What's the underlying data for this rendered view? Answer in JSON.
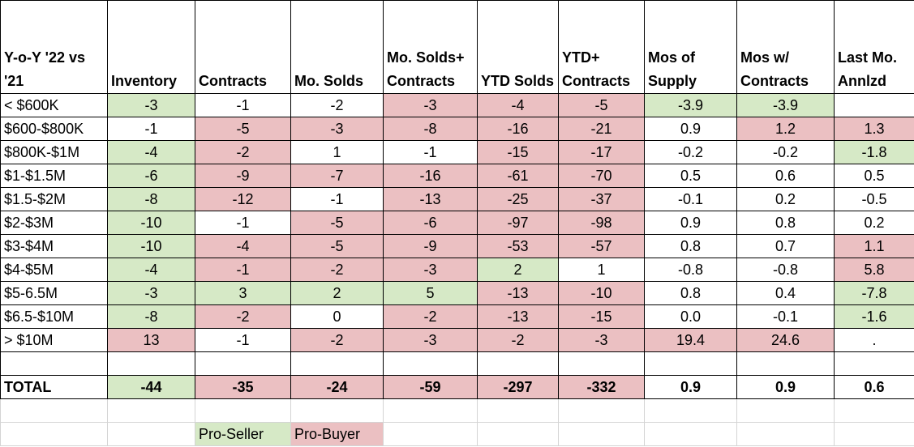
{
  "headers": [
    "Y-o-Y '22 vs '21",
    "Inventory",
    "Contracts",
    "Mo. Solds",
    "Mo. Solds+ Contracts",
    "YTD Solds",
    "YTD+ Contracts",
    "Mos of Supply",
    "Mos w/ Contracts",
    "Last Mo. Annlzd"
  ],
  "rows": [
    {
      "label": "< $600K",
      "cells": [
        [
          "-3",
          "g"
        ],
        [
          "-1",
          ""
        ],
        [
          "-2",
          ""
        ],
        [
          "-3",
          "r"
        ],
        [
          "-4",
          "r"
        ],
        [
          "-5",
          "r"
        ],
        [
          "-3.9",
          "g"
        ],
        [
          "-3.9",
          "g"
        ],
        [
          "",
          ""
        ]
      ]
    },
    {
      "label": "$600-$800K",
      "cells": [
        [
          "-1",
          ""
        ],
        [
          "-5",
          "r"
        ],
        [
          "-3",
          "r"
        ],
        [
          "-8",
          "r"
        ],
        [
          "-16",
          "r"
        ],
        [
          "-21",
          "r"
        ],
        [
          "0.9",
          ""
        ],
        [
          "1.2",
          "r"
        ],
        [
          "1.3",
          "r"
        ]
      ]
    },
    {
      "label": "$800K-$1M",
      "cells": [
        [
          "-4",
          "g"
        ],
        [
          "-2",
          "r"
        ],
        [
          "1",
          ""
        ],
        [
          "-1",
          ""
        ],
        [
          "-15",
          "r"
        ],
        [
          "-17",
          "r"
        ],
        [
          "-0.2",
          ""
        ],
        [
          "-0.2",
          ""
        ],
        [
          "-1.8",
          "g"
        ]
      ]
    },
    {
      "label": "$1-$1.5M",
      "cells": [
        [
          "-6",
          "g"
        ],
        [
          "-9",
          "r"
        ],
        [
          "-7",
          "r"
        ],
        [
          "-16",
          "r"
        ],
        [
          "-61",
          "r"
        ],
        [
          "-70",
          "r"
        ],
        [
          "0.5",
          ""
        ],
        [
          "0.6",
          ""
        ],
        [
          "0.5",
          ""
        ]
      ]
    },
    {
      "label": "$1.5-$2M",
      "cells": [
        [
          "-8",
          "g"
        ],
        [
          "-12",
          "r"
        ],
        [
          "-1",
          ""
        ],
        [
          "-13",
          "r"
        ],
        [
          "-25",
          "r"
        ],
        [
          "-37",
          "r"
        ],
        [
          "-0.1",
          ""
        ],
        [
          "0.2",
          ""
        ],
        [
          "-0.5",
          ""
        ]
      ]
    },
    {
      "label": "$2-$3M",
      "cells": [
        [
          "-10",
          "g"
        ],
        [
          "-1",
          ""
        ],
        [
          "-5",
          "r"
        ],
        [
          "-6",
          "r"
        ],
        [
          "-97",
          "r"
        ],
        [
          "-98",
          "r"
        ],
        [
          "0.9",
          ""
        ],
        [
          "0.8",
          ""
        ],
        [
          "0.2",
          ""
        ]
      ]
    },
    {
      "label": "$3-$4M",
      "cells": [
        [
          "-10",
          "g"
        ],
        [
          "-4",
          "r"
        ],
        [
          "-5",
          "r"
        ],
        [
          "-9",
          "r"
        ],
        [
          "-53",
          "r"
        ],
        [
          "-57",
          "r"
        ],
        [
          "0.8",
          ""
        ],
        [
          "0.7",
          ""
        ],
        [
          "1.1",
          "r"
        ]
      ]
    },
    {
      "label": "$4-$5M",
      "cells": [
        [
          "-4",
          "g"
        ],
        [
          "-1",
          "r"
        ],
        [
          "-2",
          "r"
        ],
        [
          "-3",
          "r"
        ],
        [
          "2",
          "g"
        ],
        [
          "1",
          ""
        ],
        [
          "-0.8",
          ""
        ],
        [
          "-0.8",
          ""
        ],
        [
          "5.8",
          "r"
        ]
      ]
    },
    {
      "label": "$5-6.5M",
      "cells": [
        [
          "-3",
          "g"
        ],
        [
          "3",
          "g"
        ],
        [
          "2",
          "g"
        ],
        [
          "5",
          "g"
        ],
        [
          "-13",
          "r"
        ],
        [
          "-10",
          "r"
        ],
        [
          "0.8",
          ""
        ],
        [
          "0.4",
          ""
        ],
        [
          "-7.8",
          "g"
        ]
      ]
    },
    {
      "label": "$6.5-$10M",
      "cells": [
        [
          "-8",
          "g"
        ],
        [
          "-2",
          "r"
        ],
        [
          "0",
          ""
        ],
        [
          "-2",
          "r"
        ],
        [
          "-13",
          "r"
        ],
        [
          "-15",
          "r"
        ],
        [
          "0.0",
          ""
        ],
        [
          "-0.1",
          ""
        ],
        [
          "-1.6",
          "g"
        ]
      ]
    },
    {
      "label": "> $10M",
      "cells": [
        [
          "13",
          "r"
        ],
        [
          "-1",
          ""
        ],
        [
          "-2",
          "r"
        ],
        [
          "-3",
          "r"
        ],
        [
          "-2",
          "r"
        ],
        [
          "-3",
          "r"
        ],
        [
          "19.4",
          "r"
        ],
        [
          "24.6",
          "r"
        ],
        [
          ".",
          ""
        ]
      ]
    }
  ],
  "total": {
    "label": "TOTAL",
    "cells": [
      [
        "-44",
        "g"
      ],
      [
        "-35",
        "r"
      ],
      [
        "-24",
        "r"
      ],
      [
        "-59",
        "r"
      ],
      [
        "-297",
        "r"
      ],
      [
        "-332",
        "r"
      ],
      [
        "0.9",
        ""
      ],
      [
        "0.9",
        ""
      ],
      [
        "0.6",
        ""
      ]
    ]
  },
  "legend": {
    "pro_seller": "Pro-Seller",
    "pro_buyer": "Pro-Buyer"
  },
  "colors": {
    "pro_seller": "#d6e9c6",
    "pro_buyer": "#ebc0c2"
  }
}
